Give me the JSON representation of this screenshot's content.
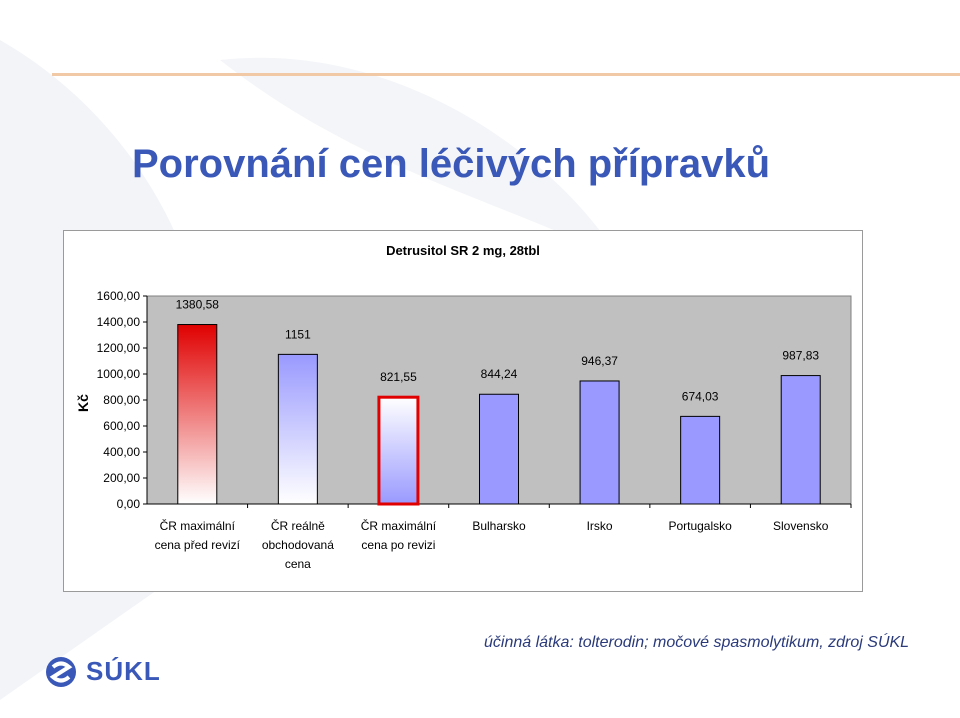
{
  "page": {
    "title": "Porovnání cen léčivých přípravků",
    "footnote": "účinná látka: tolterodin; močové spasmolytikum, zdroj SÚKL",
    "logo_text": "SÚKL",
    "accent_color": "#3a58b8"
  },
  "chart_data": {
    "type": "bar",
    "title": "Detrusitol SR 2 mg, 28tbl",
    "xlabel": "",
    "ylabel": "Kč",
    "ylim": [
      0,
      1600
    ],
    "yticks": [
      "1600,00",
      "1400,00",
      "1200,00",
      "1000,00",
      "800,00",
      "600,00",
      "400,00",
      "200,00",
      "0,00"
    ],
    "ytick_values": [
      1600,
      1400,
      1200,
      1000,
      800,
      600,
      400,
      200,
      0
    ],
    "grid": false,
    "categories": [
      [
        "ČR maximální",
        "cena před revizí"
      ],
      [
        "ČR reálně",
        "obchodovaná",
        "cena"
      ],
      [
        "ČR maximální",
        "cena po revizi"
      ],
      [
        "Bulharsko"
      ],
      [
        "Irsko"
      ],
      [
        "Portugalsko"
      ],
      [
        "Slovensko"
      ]
    ],
    "values": [
      1380.58,
      1151,
      821.55,
      844.24,
      946.37,
      674.03,
      987.83
    ],
    "data_labels": [
      "1380,58",
      "1151",
      "821,55",
      "844,24",
      "946,37",
      "674,03",
      "987,83"
    ],
    "bar_styles": [
      "red-gradient",
      "blue-gradient",
      "white-red-outline",
      "solid",
      "solid",
      "solid",
      "solid"
    ],
    "colors": {
      "bar": "#9999ff",
      "red": "#e00000",
      "plot_bg": "#c0c0c0"
    }
  }
}
